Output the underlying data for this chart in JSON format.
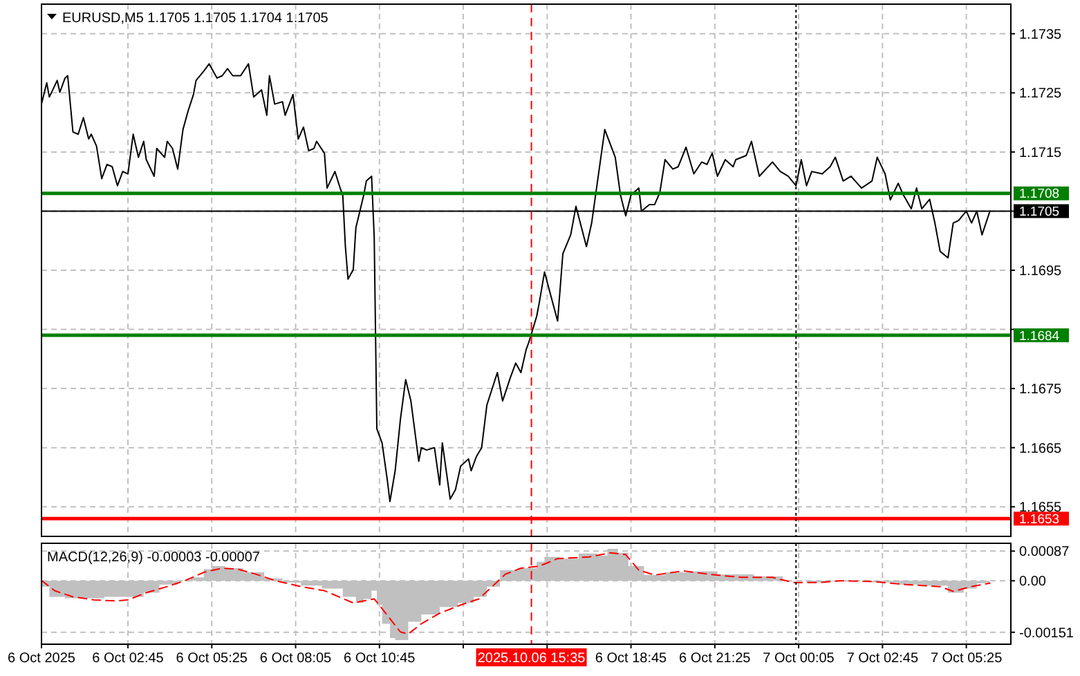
{
  "chart_data": [
    {
      "type": "line",
      "title": "EURUSD,M5 1.1705 1.1705 1.1704 1.1705",
      "xlim": [
        "2025-10-06T00:00",
        "2025-10-07T06:50"
      ],
      "ylim": [
        1.165,
        1.174
      ],
      "xticks": [
        "2025-10-06T00:00",
        "2025-10-06T02:45",
        "2025-10-06T05:25",
        "2025-10-06T08:05",
        "2025-10-06T10:45",
        "2025-10-06T13:25",
        "2025-10-06T16:05",
        "2025-10-06T18:45",
        "2025-10-06T21:25",
        "2025-10-07T00:05",
        "2025-10-07T02:45",
        "2025-10-07T05:25"
      ],
      "yticks": [
        1.1735,
        1.1725,
        1.1715,
        {
          "value": 1.1705,
          "label": null
        },
        1.1695,
        {
          "value": 1.1685,
          "label": null
        },
        1.1675,
        1.1665,
        1.1655
      ],
      "tick_labels": "y",
      "grid": true,
      "series": [
        {
          "color": "#000000",
          "x": [
            "2025-10-06T00:00",
            "2025-10-06T00:10",
            "2025-10-06T00:15",
            "2025-10-06T00:30",
            "2025-10-06T00:35",
            "2025-10-06T00:45",
            "2025-10-06T00:50",
            "2025-10-06T01:00",
            "2025-10-06T01:10",
            "2025-10-06T01:20",
            "2025-10-06T01:30",
            "2025-10-06T01:35",
            "2025-10-06T01:45",
            "2025-10-06T01:55",
            "2025-10-06T02:05",
            "2025-10-06T02:15",
            "2025-10-06T02:25",
            "2025-10-06T02:35",
            "2025-10-06T02:45",
            "2025-10-06T02:55",
            "2025-10-06T03:05",
            "2025-10-06T03:15",
            "2025-10-06T03:20",
            "2025-10-06T03:35",
            "2025-10-06T03:40",
            "2025-10-06T03:55",
            "2025-10-06T04:00",
            "2025-10-06T04:10",
            "2025-10-06T04:20",
            "2025-10-06T04:30",
            "2025-10-06T04:40",
            "2025-10-06T04:50",
            "2025-10-06T04:55",
            "2025-10-06T05:10",
            "2025-10-06T05:20",
            "2025-10-06T05:35",
            "2025-10-06T05:45",
            "2025-10-06T05:55",
            "2025-10-06T06:05",
            "2025-10-06T06:20",
            "2025-10-06T06:35",
            "2025-10-06T06:45",
            "2025-10-06T07:00",
            "2025-10-06T07:10",
            "2025-10-06T07:15",
            "2025-10-06T07:25",
            "2025-10-06T07:40",
            "2025-10-06T07:45",
            "2025-10-06T08:00",
            "2025-10-06T08:10",
            "2025-10-06T08:20",
            "2025-10-06T08:30",
            "2025-10-06T08:40",
            "2025-10-06T08:45",
            "2025-10-06T09:00",
            "2025-10-06T09:05",
            "2025-10-06T09:20",
            "2025-10-06T09:30",
            "2025-10-06T09:35",
            "2025-10-06T09:40",
            "2025-10-06T09:45",
            "2025-10-06T09:55",
            "2025-10-06T10:00",
            "2025-10-06T10:15",
            "2025-10-06T10:20",
            "2025-10-06T10:30",
            "2025-10-06T10:35",
            "2025-10-06T10:40",
            "2025-10-06T10:50",
            "2025-10-06T11:00",
            "2025-10-06T11:05",
            "2025-10-06T11:15",
            "2025-10-06T11:25",
            "2025-10-06T11:35",
            "2025-10-06T11:45",
            "2025-10-06T12:00",
            "2025-10-06T12:05",
            "2025-10-06T12:15",
            "2025-10-06T12:30",
            "2025-10-06T12:40",
            "2025-10-06T12:45",
            "2025-10-06T13:00",
            "2025-10-06T13:10",
            "2025-10-06T13:20",
            "2025-10-06T13:35",
            "2025-10-06T13:40",
            "2025-10-06T13:50",
            "2025-10-06T14:00",
            "2025-10-06T14:10",
            "2025-10-06T14:30",
            "2025-10-06T14:40",
            "2025-10-06T14:55",
            "2025-10-06T15:05",
            "2025-10-06T15:15",
            "2025-10-06T15:25",
            "2025-10-06T15:30",
            "2025-10-06T15:45",
            "2025-10-06T15:50",
            "2025-10-06T16:00",
            "2025-10-06T16:25",
            "2025-10-06T16:35",
            "2025-10-06T16:50",
            "2025-10-06T17:00",
            "2025-10-06T17:20",
            "2025-10-06T17:30",
            "2025-10-06T17:55",
            "2025-10-06T18:15",
            "2025-10-06T18:25",
            "2025-10-06T18:35",
            "2025-10-06T18:45",
            "2025-10-06T19:00",
            "2025-10-06T19:05",
            "2025-10-06T19:20",
            "2025-10-06T19:30",
            "2025-10-06T19:40",
            "2025-10-06T19:50",
            "2025-10-06T20:05",
            "2025-10-06T20:15",
            "2025-10-06T20:30",
            "2025-10-06T20:45",
            "2025-10-06T21:00",
            "2025-10-06T21:10",
            "2025-10-06T21:20",
            "2025-10-06T21:30",
            "2025-10-06T21:45",
            "2025-10-06T22:00",
            "2025-10-06T22:05",
            "2025-10-06T22:25",
            "2025-10-06T22:35",
            "2025-10-06T22:50",
            "2025-10-06T23:15",
            "2025-10-06T23:30",
            "2025-10-06T23:45",
            "2025-10-07T00:00",
            "2025-10-07T00:10",
            "2025-10-07T00:20",
            "2025-10-07T00:30",
            "2025-10-07T00:50",
            "2025-10-07T01:05",
            "2025-10-07T01:15",
            "2025-10-07T01:30",
            "2025-10-07T01:45",
            "2025-10-07T02:05",
            "2025-10-07T02:25",
            "2025-10-07T02:35",
            "2025-10-07T02:50",
            "2025-10-07T03:00",
            "2025-10-07T03:15",
            "2025-10-07T03:25",
            "2025-10-07T03:40",
            "2025-10-07T03:50",
            "2025-10-07T04:00",
            "2025-10-07T04:15",
            "2025-10-07T04:25",
            "2025-10-07T04:35",
            "2025-10-07T04:50",
            "2025-10-07T05:00",
            "2025-10-07T05:10",
            "2025-10-07T05:25",
            "2025-10-07T05:35",
            "2025-10-07T05:45",
            "2025-10-07T05:55",
            "2025-10-07T06:10"
          ],
          "values": [
            1.17231,
            1.17267,
            1.17243,
            1.17271,
            1.17251,
            1.17275,
            1.17279,
            1.17184,
            1.1718,
            1.17208,
            1.17172,
            1.1718,
            1.1716,
            1.17105,
            1.17129,
            1.17125,
            1.17093,
            1.17117,
            1.17113,
            1.1718,
            1.17141,
            1.17168,
            1.17137,
            1.17109,
            1.17156,
            1.17141,
            1.17168,
            1.17156,
            1.17121,
            1.17188,
            1.1722,
            1.17247,
            1.17271,
            1.17287,
            1.17299,
            1.17275,
            1.17279,
            1.17291,
            1.17279,
            1.17279,
            1.17299,
            1.17243,
            1.17255,
            1.17212,
            1.17279,
            1.17231,
            1.17235,
            1.17212,
            1.17247,
            1.17172,
            1.17192,
            1.17152,
            1.17156,
            1.17168,
            1.17148,
            1.17089,
            1.17117,
            1.17089,
            1.17077,
            1.1699,
            1.16935,
            1.16951,
            1.17022,
            1.17077,
            1.17101,
            1.17109,
            1.17006,
            1.16682,
            1.16658,
            1.16595,
            1.16559,
            1.16611,
            1.16698,
            1.16765,
            1.16729,
            1.16627,
            1.1665,
            1.16646,
            1.1665,
            1.16587,
            1.16658,
            1.16563,
            1.16579,
            1.16619,
            1.16631,
            1.16611,
            1.16635,
            1.1665,
            1.16722,
            1.16777,
            1.16729,
            1.16769,
            1.16793,
            1.16777,
            1.16816,
            1.16828,
            1.16872,
            1.16895,
            1.16947,
            1.16864,
            1.16978,
            1.1701,
            1.17058,
            1.1699,
            1.1703,
            1.17188,
            1.17141,
            1.17077,
            1.17042,
            1.17077,
            1.17089,
            1.1705,
            1.17061,
            1.17061,
            1.17081,
            1.17137,
            1.17121,
            1.17125,
            1.17158,
            1.17113,
            1.17133,
            1.17129,
            1.17148,
            1.17109,
            1.17137,
            1.17125,
            1.17137,
            1.17144,
            1.17168,
            1.17109,
            1.17133,
            1.17117,
            1.17109,
            1.17093,
            1.17137,
            1.17093,
            1.17117,
            1.17113,
            1.17125,
            1.17141,
            1.17101,
            1.17109,
            1.17089,
            1.17101,
            1.17141,
            1.17113,
            1.17069,
            1.17097,
            1.17077,
            1.17054,
            1.17089,
            1.17054,
            1.1707,
            1.1703,
            1.16982,
            1.16971,
            1.1703,
            1.17034,
            1.1705,
            1.1703,
            1.1705,
            1.1701,
            1.1705
          ]
        }
      ],
      "ref_lines": [
        {
          "axis": "y",
          "value": 1.1708,
          "label": "1.1708",
          "color": "#008000"
        },
        {
          "axis": "y",
          "value": 1.1705,
          "label": "1.1705",
          "color": "#000000",
          "line_style": "solid"
        },
        {
          "axis": "y",
          "value": 1.1684,
          "label": "1.1684",
          "color": "#008000"
        },
        {
          "axis": "y",
          "value": 1.1653,
          "label": "1.1653",
          "color": "#ff0000"
        },
        {
          "axis": "x",
          "value": "2025-10-06T15:35",
          "color": "#ff0000",
          "line_style": "dashed"
        },
        {
          "axis": "x",
          "value": "2025-10-07T00:00",
          "color": "#000000",
          "line_style": "dotted"
        }
      ]
    },
    {
      "type": "line",
      "title": "MACD(12,26,9) -0.00003 -0.00007",
      "xlim": [
        "2025-10-06T00:00",
        "2025-10-07T06:50"
      ],
      "ylim": [
        -0.00186,
        0.0011
      ],
      "xticks": [
        {
          "value": "2025-10-06T00:00",
          "label": "6 Oct 2025"
        },
        {
          "value": "2025-10-06T02:45",
          "label": "6 Oct 02:45"
        },
        {
          "value": "2025-10-06T05:25",
          "label": "6 Oct 05:25"
        },
        {
          "value": "2025-10-06T08:05",
          "label": "6 Oct 08:05"
        },
        {
          "value": "2025-10-06T10:45",
          "label": "6 Oct 10:45"
        },
        {
          "value": "2025-10-06T13:25",
          "label": null
        },
        {
          "value": "2025-10-06T16:05",
          "label": null
        },
        {
          "value": "2025-10-06T18:45",
          "label": "6 Oct 18:45"
        },
        {
          "value": "2025-10-06T21:25",
          "label": "6 Oct 21:25"
        },
        {
          "value": "2025-10-07T00:05",
          "label": "7 Oct 00:05"
        },
        {
          "value": "2025-10-07T02:45",
          "label": "7 Oct 02:45"
        },
        {
          "value": "2025-10-07T05:25",
          "label": "7 Oct 05:25"
        }
      ],
      "yticks": [
        0.00087,
        {
          "value": 0,
          "label": "0.00"
        },
        -0.00151
      ],
      "grid": true,
      "series": [
        {
          "type": "area",
          "color": "#c0c0c0",
          "x": [
            "2025-10-06T00:00",
            "2025-10-06T00:15",
            "2025-10-06T00:45",
            "2025-10-06T01:15",
            "2025-10-06T02:00",
            "2025-10-06T02:40",
            "2025-10-06T03:15",
            "2025-10-06T03:45",
            "2025-10-06T04:20",
            "2025-10-06T04:45",
            "2025-10-06T05:10",
            "2025-10-06T05:25",
            "2025-10-06T05:50",
            "2025-10-06T06:25",
            "2025-10-06T07:05",
            "2025-10-06T07:40",
            "2025-10-06T08:15",
            "2025-10-06T08:55",
            "2025-10-06T09:35",
            "2025-10-06T10:00",
            "2025-10-06T10:15",
            "2025-10-06T10:30",
            "2025-10-06T10:40",
            "2025-10-06T10:50",
            "2025-10-06T11:05",
            "2025-10-06T11:15",
            "2025-10-06T11:40",
            "2025-10-06T12:05",
            "2025-10-06T12:40",
            "2025-10-06T13:15",
            "2025-10-06T13:45",
            "2025-10-06T14:10",
            "2025-10-06T14:35",
            "2025-10-06T15:10",
            "2025-10-06T15:45",
            "2025-10-06T16:00",
            "2025-10-06T16:30",
            "2025-10-06T17:05",
            "2025-10-06T17:40",
            "2025-10-06T18:00",
            "2025-10-06T18:20",
            "2025-10-06T18:40",
            "2025-10-06T19:10",
            "2025-10-06T19:50",
            "2025-10-06T20:35",
            "2025-10-06T21:30",
            "2025-10-06T22:40",
            "2025-10-06T23:35",
            "2025-10-07T00:20",
            "2025-10-07T01:00",
            "2025-10-07T01:45",
            "2025-10-07T02:25",
            "2025-10-07T03:15",
            "2025-10-07T04:05",
            "2025-10-07T04:50",
            "2025-10-07T05:20",
            "2025-10-07T05:45",
            "2025-10-07T06:10"
          ],
          "values": [
            -0.00017,
            -0.00047,
            -0.00051,
            -0.00051,
            -0.00047,
            -0.00047,
            -0.00035,
            -0.00011,
            0,
            0.0001,
            0.00034,
            0.00043,
            0.00037,
            0.00025,
            7e-05,
            -5e-05,
            -0.00014,
            -0.00023,
            -0.00047,
            -0.00065,
            -0.00053,
            -0.00029,
            -0.00071,
            -0.00126,
            -0.00168,
            -0.00174,
            -0.0012,
            -0.00099,
            -0.00077,
            -0.00065,
            -0.00047,
            -0.00017,
            0.00031,
            0.00037,
            0.00056,
            0.0007,
            0.00065,
            0.0008,
            0.00074,
            0.00094,
            0.00082,
            0.00043,
            0.00017,
            0.00025,
            0.00028,
            0.00019,
            0.00013,
            1e-05,
            -5e-05,
            -2e-05,
            0,
            -5e-05,
            -0.00011,
            -0.00014,
            -0.00035,
            -0.00023,
            -7e-05,
            -3e-05
          ]
        },
        {
          "color": "#ff0000",
          "line_style": "dashed",
          "x": [
            "2025-10-06T00:00",
            "2025-10-06T00:25",
            "2025-10-06T01:00",
            "2025-10-06T01:40",
            "2025-10-06T02:25",
            "2025-10-06T02:45",
            "2025-10-06T03:20",
            "2025-10-06T04:00",
            "2025-10-06T04:35",
            "2025-10-06T05:10",
            "2025-10-06T05:45",
            "2025-10-06T06:15",
            "2025-10-06T06:50",
            "2025-10-06T07:25",
            "2025-10-06T08:15",
            "2025-10-06T09:00",
            "2025-10-06T09:55",
            "2025-10-06T10:35",
            "2025-10-06T11:00",
            "2025-10-06T11:25",
            "2025-10-06T11:40",
            "2025-10-06T12:05",
            "2025-10-06T12:40",
            "2025-10-06T13:20",
            "2025-10-06T13:55",
            "2025-10-06T14:20",
            "2025-10-06T14:45",
            "2025-10-06T15:15",
            "2025-10-06T15:50",
            "2025-10-06T16:25",
            "2025-10-06T17:25",
            "2025-10-06T18:05",
            "2025-10-06T18:35",
            "2025-10-06T19:00",
            "2025-10-06T19:30",
            "2025-10-06T20:25",
            "2025-10-06T21:15",
            "2025-10-06T22:15",
            "2025-10-06T23:15",
            "2025-10-06T23:55",
            "2025-10-07T00:45",
            "2025-10-07T01:25",
            "2025-10-07T02:25",
            "2025-10-07T03:30",
            "2025-10-07T04:35",
            "2025-10-07T05:00",
            "2025-10-07T05:35",
            "2025-10-07T06:10"
          ],
          "values": [
            1e-05,
            -0.00029,
            -0.00047,
            -0.00056,
            -0.00059,
            -0.00056,
            -0.00035,
            -0.00017,
            1e-05,
            0.00025,
            0.00037,
            0.00034,
            0.00019,
            1e-05,
            -0.00017,
            -0.00029,
            -0.00065,
            -0.00053,
            -0.00101,
            -0.0015,
            -0.00156,
            -0.00126,
            -0.00095,
            -0.00071,
            -0.00053,
            -0.00017,
            0.00019,
            0.00037,
            0.00043,
            0.00065,
            0.0007,
            0.00082,
            0.00077,
            0.00031,
            0.00017,
            0.00029,
            0.00019,
            0.0001,
            0.0001,
            -5e-05,
            -5e-05,
            0,
            -2e-05,
            -0.00011,
            -0.00017,
            -0.00031,
            -0.00017,
            -7e-05
          ]
        }
      ],
      "ref_lines": [
        {
          "axis": "x",
          "value": "2025-10-06T15:35",
          "label": "2025.10.06 15:35",
          "color": "#ff0000",
          "line_style": "dashed"
        },
        {
          "axis": "x",
          "value": "2025-10-07T00:00",
          "color": "#000000",
          "line_style": "dotted"
        }
      ]
    }
  ]
}
